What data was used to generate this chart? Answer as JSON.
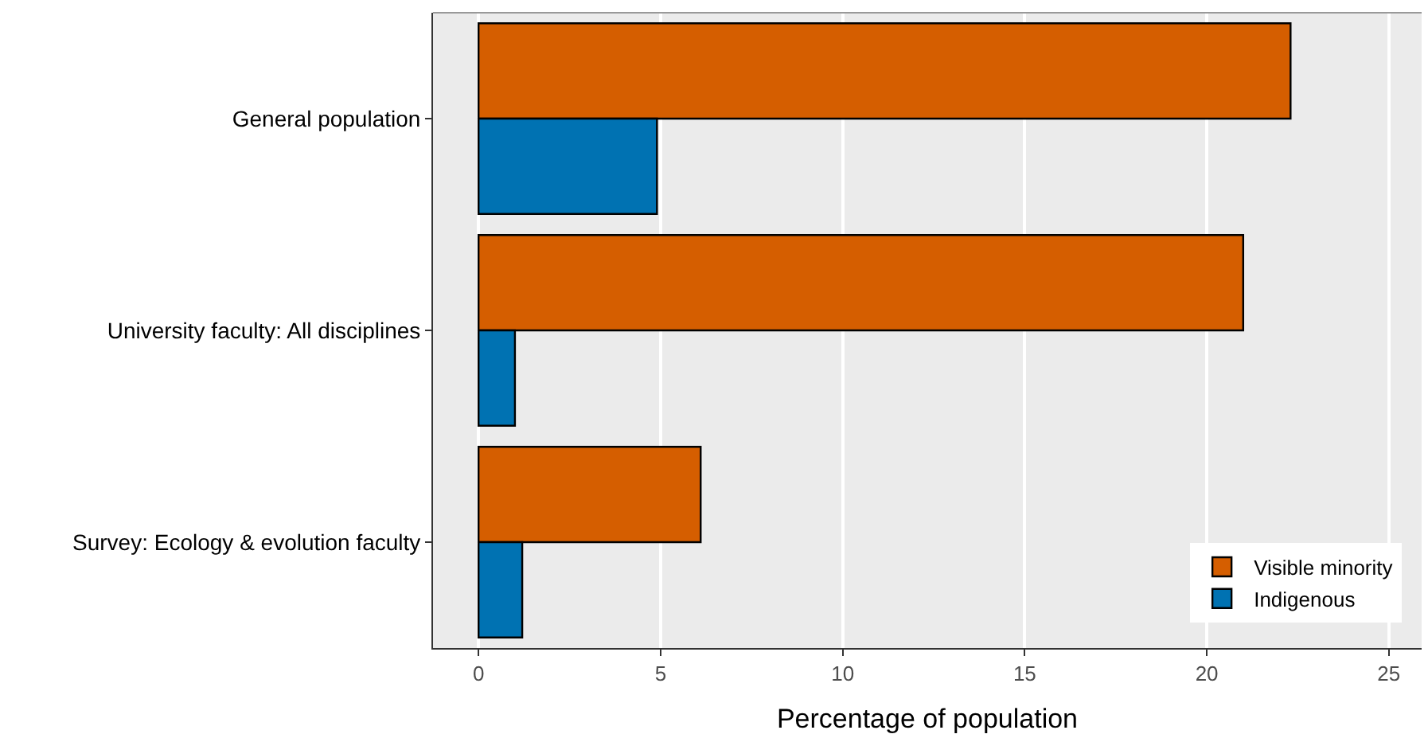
{
  "chart_data": {
    "type": "bar",
    "orientation": "horizontal",
    "categories": [
      "General population",
      "University faculty: All disciplines",
      "Survey: Ecology & evolution faculty"
    ],
    "series": [
      {
        "name": "Visible minority",
        "color": "#d55e00",
        "values": [
          22.3,
          21.0,
          6.1
        ]
      },
      {
        "name": "Indigenous",
        "color": "#0072b2",
        "values": [
          4.9,
          1.0,
          1.2
        ]
      }
    ],
    "xlabel": "Percentage of population",
    "xlim": [
      -1.25,
      25.9
    ],
    "xticks": [
      0,
      5,
      10,
      15,
      20,
      25
    ],
    "grid": "x",
    "legend": "bottom right"
  }
}
